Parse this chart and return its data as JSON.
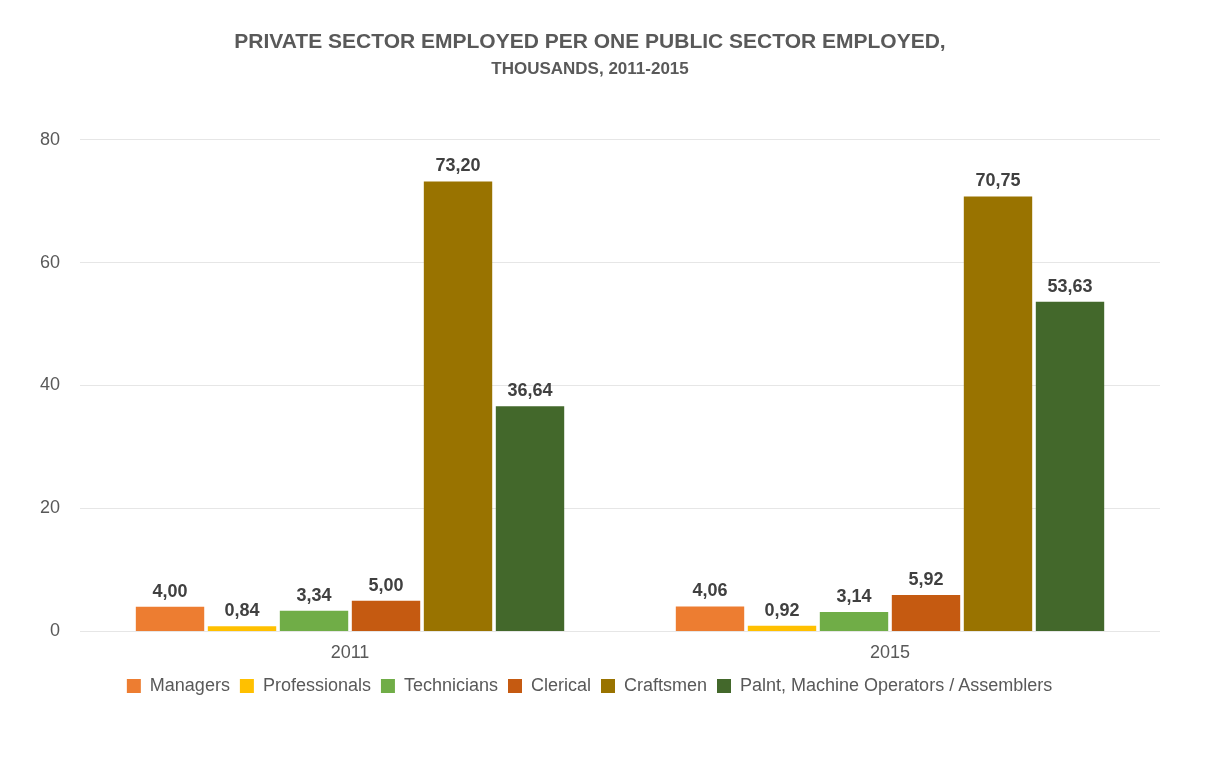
{
  "chart_data": {
    "type": "bar",
    "title": "PRIVATE SECTOR EMPLOYED PER ONE PUBLIC SECTOR EMPLOYED,",
    "subtitle": "THOUSANDS, 2011-2015",
    "categories": [
      "2011",
      "2015"
    ],
    "series": [
      {
        "name": "Managers",
        "color": "#ed7d31",
        "values": [
          4.0,
          4.06
        ],
        "value_labels": [
          "4,00",
          "4,06"
        ]
      },
      {
        "name": "Professionals",
        "color": "#ffc000",
        "values": [
          0.84,
          0.92
        ],
        "value_labels": [
          "0,84",
          "0,92"
        ]
      },
      {
        "name": "Technicians",
        "color": "#70ad47",
        "values": [
          3.34,
          3.14
        ],
        "value_labels": [
          "3,34",
          "3,14"
        ]
      },
      {
        "name": "Clerical",
        "color": "#c55a11",
        "values": [
          5.0,
          5.92
        ],
        "value_labels": [
          "5,00",
          "5,92"
        ]
      },
      {
        "name": "Craftsmen",
        "color": "#997300",
        "values": [
          73.2,
          70.75
        ],
        "value_labels": [
          "73,20",
          "70,75"
        ]
      },
      {
        "name": "Palnt, Machine Operators / Assemblers",
        "color": "#43682b",
        "values": [
          36.64,
          53.63
        ],
        "value_labels": [
          "36,64",
          "53,63"
        ]
      }
    ],
    "ylim": [
      0,
      80
    ],
    "yticks": [
      0,
      20,
      40,
      60,
      80
    ],
    "grid": "y",
    "legend": "bottom"
  }
}
